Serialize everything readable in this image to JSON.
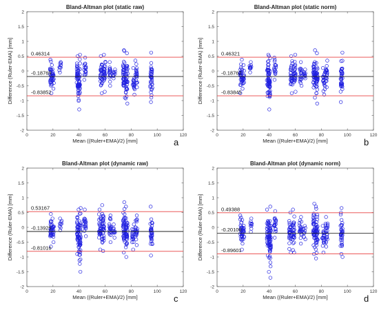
{
  "chart_data": [
    {
      "type": "scatter",
      "title": "Bland-Altman plot (static raw)",
      "xlabel": "Mean ((Ruler+EMA)/2) [mm]",
      "ylabel": "Difference (Ruler-EMA) [mm]",
      "panel_label": "a",
      "xlim": [
        0,
        120
      ],
      "ylim": [
        -2,
        2
      ],
      "xticks": [
        "0",
        "20",
        "40",
        "60",
        "80",
        "100",
        "120"
      ],
      "yticks": [
        "-2",
        "-1.5",
        "-1",
        "-0.5",
        "0",
        "0.5",
        "1",
        "1.5",
        "2"
      ],
      "mean_diff": -0.18769,
      "upper_loa": 0.46314,
      "lower_loa": -0.83852,
      "mean_label": "-0.18769",
      "upper_label": "0.46314",
      "lower_label": "-0.83852",
      "marker_color": "#2020e0",
      "loa_color": "#e84040",
      "mean_color": "#222222",
      "clusters": [
        {
          "x": 18.5,
          "ymin": -0.75,
          "ymax": 0.38
        },
        {
          "x": 20,
          "ymin": -0.6,
          "ymax": 0.2
        },
        {
          "x": 25.5,
          "ymin": -0.05,
          "ymax": 0.3
        },
        {
          "x": 39,
          "ymin": -0.85,
          "ymax": 0.5
        },
        {
          "x": 40,
          "ymin": -1.3,
          "ymax": 0.55
        },
        {
          "x": 44.5,
          "ymin": -0.3,
          "ymax": 0.45
        },
        {
          "x": 57,
          "ymin": -0.75,
          "ymax": 0.5
        },
        {
          "x": 59.5,
          "ymin": -0.7,
          "ymax": 0.55
        },
        {
          "x": 64,
          "ymin": -0.5,
          "ymax": 0.3
        },
        {
          "x": 67,
          "ymin": -0.25,
          "ymax": 0.05
        },
        {
          "x": 74.5,
          "ymin": -0.9,
          "ymax": 0.7
        },
        {
          "x": 76.5,
          "ymin": -1.1,
          "ymax": 0.6
        },
        {
          "x": 82,
          "ymin": -0.8,
          "ymax": 0.1
        },
        {
          "x": 84,
          "ymin": -0.55,
          "ymax": 0.35
        },
        {
          "x": 95.5,
          "ymin": -1.05,
          "ymax": 0.62
        }
      ]
    },
    {
      "type": "scatter",
      "title": "Bland-Altman plot (static norm)",
      "xlabel": "Mean ((Ruler+EMA)/2) [mm]",
      "ylabel": "Difference (Ruler-EMA) [mm]",
      "panel_label": "b",
      "xlim": [
        0,
        120
      ],
      "ylim": [
        -2,
        2
      ],
      "xticks": [
        "0",
        "20",
        "40",
        "60",
        "80",
        "100",
        "120"
      ],
      "yticks": [
        "-2",
        "-1.5",
        "-1",
        "-0.5",
        "0",
        "0.5",
        "1",
        "1.5",
        "2"
      ],
      "mean_diff": -0.18762,
      "upper_loa": 0.46321,
      "lower_loa": -0.83845,
      "mean_label": "-0.18762",
      "upper_label": "0.46321",
      "lower_label": "-0.83845",
      "marker_color": "#2020e0",
      "loa_color": "#e84040",
      "mean_color": "#222222",
      "clusters": [
        {
          "x": 18.5,
          "ymin": -0.75,
          "ymax": 0.38
        },
        {
          "x": 20,
          "ymin": -0.6,
          "ymax": 0.2
        },
        {
          "x": 25.5,
          "ymin": -0.05,
          "ymax": 0.3
        },
        {
          "x": 39,
          "ymin": -0.85,
          "ymax": 0.5
        },
        {
          "x": 40,
          "ymin": -1.3,
          "ymax": 0.55
        },
        {
          "x": 44.5,
          "ymin": -0.3,
          "ymax": 0.45
        },
        {
          "x": 57,
          "ymin": -0.75,
          "ymax": 0.5
        },
        {
          "x": 59.5,
          "ymin": -0.7,
          "ymax": 0.55
        },
        {
          "x": 64,
          "ymin": -0.5,
          "ymax": 0.3
        },
        {
          "x": 67,
          "ymin": -0.25,
          "ymax": 0.05
        },
        {
          "x": 74.5,
          "ymin": -0.9,
          "ymax": 0.7
        },
        {
          "x": 76.5,
          "ymin": -1.1,
          "ymax": 0.6
        },
        {
          "x": 82,
          "ymin": -0.8,
          "ymax": 0.1
        },
        {
          "x": 84,
          "ymin": -0.55,
          "ymax": 0.35
        },
        {
          "x": 95.5,
          "ymin": -1.05,
          "ymax": 0.62
        }
      ]
    },
    {
      "type": "scatter",
      "title": "Bland-Altman plot (dynamic raw)",
      "xlabel": "Mean ((Ruler+EMA)/2) [mm]",
      "ylabel": "Difference (Ruler-EMA) [mm]",
      "panel_label": "c",
      "xlim": [
        0,
        120
      ],
      "ylim": [
        -2,
        2
      ],
      "xticks": [
        "0",
        "20",
        "40",
        "60",
        "80",
        "100",
        "120"
      ],
      "yticks": [
        "-2",
        "-1.5",
        "-1",
        "-0.5",
        "0",
        "0.5",
        "1",
        "1.5",
        "2"
      ],
      "mean_diff": -0.13925,
      "upper_loa": 0.53167,
      "lower_loa": -0.81016,
      "mean_label": "-0.13925",
      "upper_label": "0.53167",
      "lower_label": "-0.81016",
      "marker_color": "#2020e0",
      "loa_color": "#e84040",
      "mean_color": "#222222",
      "clusters": [
        {
          "x": 18.5,
          "ymin": -0.65,
          "ymax": 0.45
        },
        {
          "x": 20,
          "ymin": -0.5,
          "ymax": 0.3
        },
        {
          "x": 26,
          "ymin": -0.1,
          "ymax": 0.3
        },
        {
          "x": 39,
          "ymin": -0.9,
          "ymax": 0.6
        },
        {
          "x": 40.5,
          "ymin": -1.5,
          "ymax": 0.65
        },
        {
          "x": 44.5,
          "ymin": -0.3,
          "ymax": 0.6
        },
        {
          "x": 56,
          "ymin": -0.75,
          "ymax": 0.6
        },
        {
          "x": 58.5,
          "ymin": -0.8,
          "ymax": 0.75
        },
        {
          "x": 64,
          "ymin": -0.5,
          "ymax": 0.4
        },
        {
          "x": 67,
          "ymin": -0.35,
          "ymax": 0.1
        },
        {
          "x": 74.5,
          "ymin": -0.85,
          "ymax": 0.85
        },
        {
          "x": 76.5,
          "ymin": -1.0,
          "ymax": 0.7
        },
        {
          "x": 81.5,
          "ymin": -0.75,
          "ymax": 0.1
        },
        {
          "x": 84,
          "ymin": -0.6,
          "ymax": 0.4
        },
        {
          "x": 95.5,
          "ymin": -0.95,
          "ymax": 0.7
        }
      ]
    },
    {
      "type": "scatter",
      "title": "Bland-Altman plot (dynamic norm)",
      "xlabel": "Mean ((Ruler+EMA)/2) [mm]",
      "ylabel": "Difference (Ruler-EMA) [mm]",
      "panel_label": "d",
      "xlim": [
        0,
        120
      ],
      "ylim": [
        -2,
        2
      ],
      "xticks": [
        "0",
        "20",
        "40",
        "60",
        "80",
        "100",
        "120"
      ],
      "yticks": [
        "-2",
        "-1.5",
        "-1",
        "-0.5",
        "0",
        "0.5",
        "1",
        "1.5",
        "2"
      ],
      "mean_diff": -0.20106,
      "upper_loa": 0.49388,
      "lower_loa": -0.89601,
      "mean_label": "-0.20106",
      "upper_label": "0.49388",
      "lower_label": "-0.89601",
      "marker_color": "#2020e0",
      "loa_color": "#e84040",
      "mean_color": "#222222",
      "clusters": [
        {
          "x": 18.5,
          "ymin": -0.75,
          "ymax": 0.4
        },
        {
          "x": 20,
          "ymin": -0.55,
          "ymax": 0.25
        },
        {
          "x": 26,
          "ymin": -0.15,
          "ymax": 0.3
        },
        {
          "x": 39,
          "ymin": -0.95,
          "ymax": 0.6
        },
        {
          "x": 40.5,
          "ymin": -1.7,
          "ymax": 0.7
        },
        {
          "x": 44.5,
          "ymin": -0.35,
          "ymax": 0.55
        },
        {
          "x": 56,
          "ymin": -0.85,
          "ymax": 0.5
        },
        {
          "x": 58.5,
          "ymin": -0.85,
          "ymax": 0.6
        },
        {
          "x": 64,
          "ymin": -0.55,
          "ymax": 0.35
        },
        {
          "x": 67,
          "ymin": -0.4,
          "ymax": 0.05
        },
        {
          "x": 74.5,
          "ymin": -0.9,
          "ymax": 0.8
        },
        {
          "x": 76.5,
          "ymin": -1.05,
          "ymax": 0.7
        },
        {
          "x": 81.5,
          "ymin": -0.85,
          "ymax": 0.05
        },
        {
          "x": 84,
          "ymin": -0.65,
          "ymax": 0.35
        },
        {
          "x": 95.5,
          "ymin": -1.0,
          "ymax": 0.65
        }
      ]
    }
  ]
}
